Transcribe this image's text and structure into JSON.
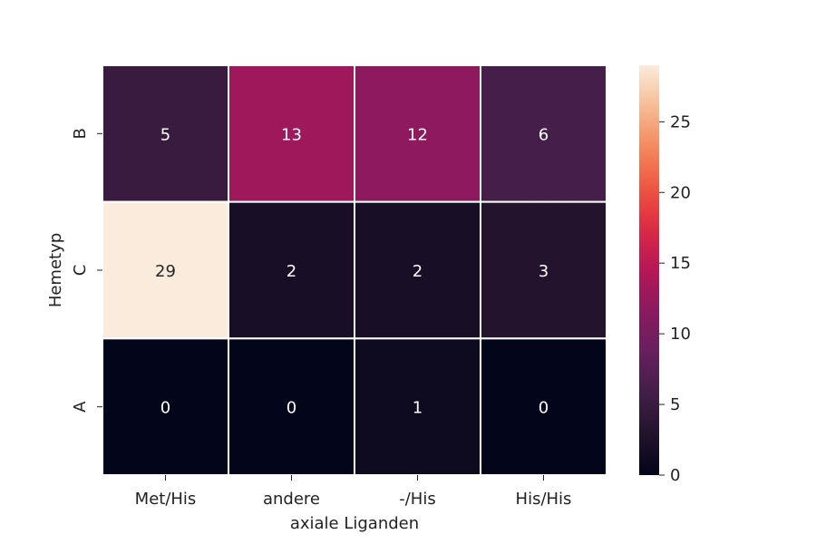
{
  "chart_data": {
    "type": "heatmap",
    "title": "",
    "xlabel": "axiale Liganden",
    "ylabel": "Hemetyp",
    "x_categories": [
      "Met/His",
      "andere",
      "-/His",
      "His/His"
    ],
    "y_categories": [
      "B",
      "C",
      "A"
    ],
    "values": [
      [
        5,
        13,
        12,
        6
      ],
      [
        29,
        2,
        2,
        3
      ],
      [
        0,
        0,
        1,
        0
      ]
    ],
    "colorbar": {
      "min": 0,
      "max": 29,
      "ticks": [
        0,
        5,
        10,
        15,
        20,
        25
      ]
    },
    "colormap": "rocket",
    "grid": false,
    "annotations_shown": true
  }
}
